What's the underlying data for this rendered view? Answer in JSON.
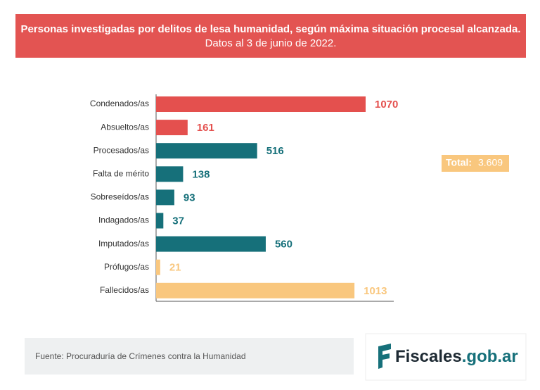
{
  "chart_data": {
    "type": "bar",
    "title_bold": "Personas investigadas por delitos de lesa humanidad, según máxima situación procesal alcanzada.",
    "title_normal": "Datos al 3 de junio de 2022.",
    "categories": [
      "Condenados/as",
      "Absueltos/as",
      "Procesados/as",
      "Falta de mérito",
      "Sobreseídos/as",
      "Indagados/as",
      "Imputados/as",
      "Prófugos/as",
      "Fallecidos/as"
    ],
    "values": [
      1070,
      161,
      516,
      138,
      93,
      37,
      560,
      21,
      1013
    ],
    "colors": [
      "#e4504e",
      "#e4504e",
      "#16707a",
      "#16707a",
      "#16707a",
      "#16707a",
      "#16707a",
      "#f9c77e",
      "#f9c77e"
    ],
    "total_label": "Total:",
    "total": "3.609",
    "source": "Fuente: Procuraduría de Crímenes contra la Humanidad",
    "logo": [
      "Fiscales",
      ".gob.ar"
    ]
  }
}
